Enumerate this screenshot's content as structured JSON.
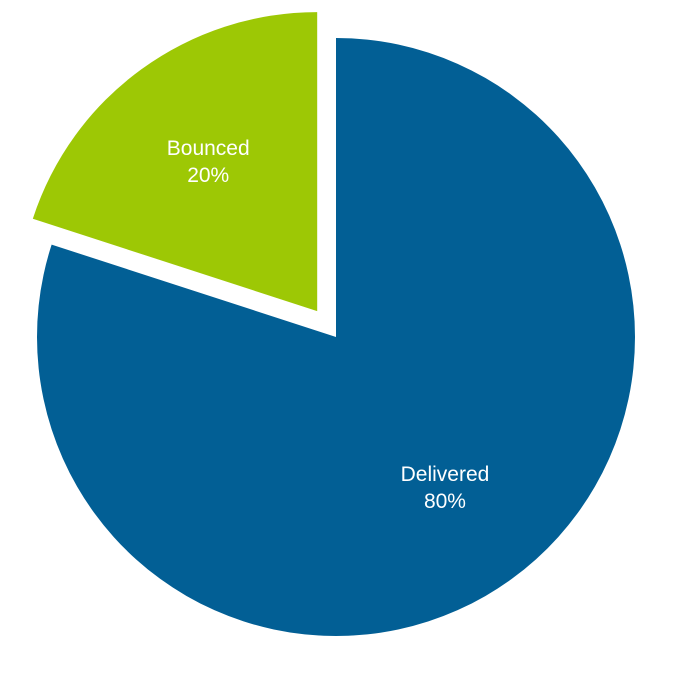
{
  "chart_data": {
    "type": "pie",
    "title": "",
    "slices": [
      {
        "label": "Delivered",
        "value": 80,
        "display": "80%",
        "color": "#025f95",
        "exploded": false
      },
      {
        "label": "Bounced",
        "value": 20,
        "display": "20%",
        "color": "#9dc805",
        "exploded": true
      }
    ],
    "legend": "none"
  }
}
